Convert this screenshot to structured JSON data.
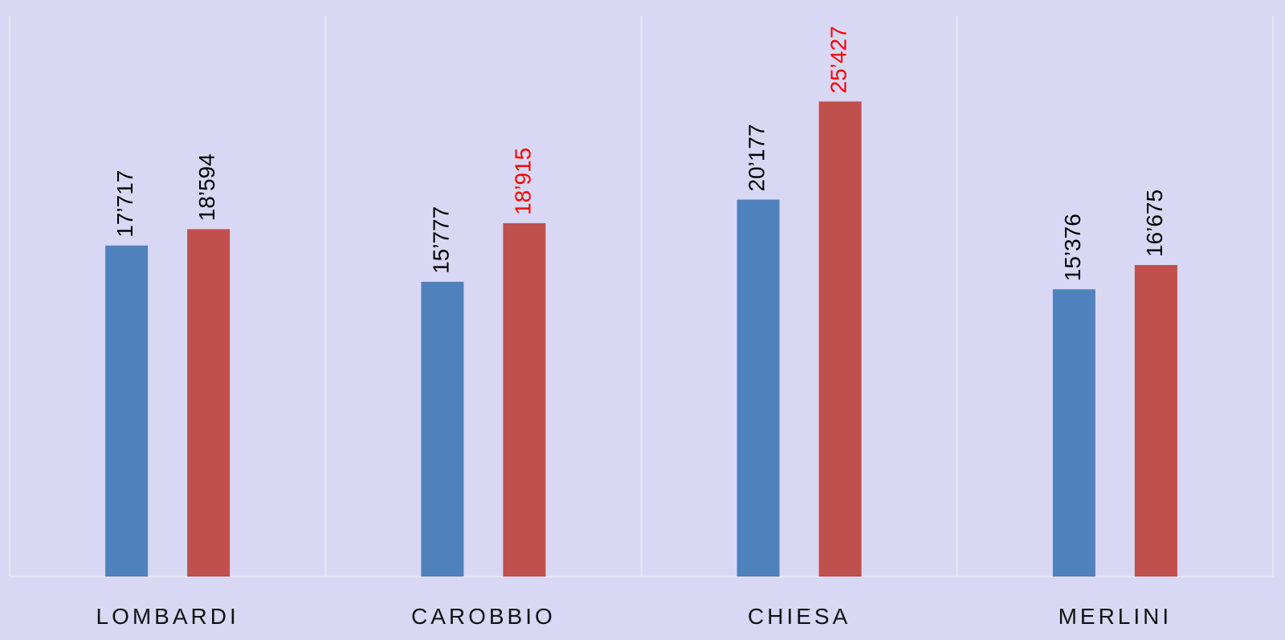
{
  "chart_data": {
    "type": "bar",
    "categories": [
      "LOMBARDI",
      "CAROBBIO",
      "CHIESA",
      "MERLINI"
    ],
    "series": [
      {
        "color": "#4f81bd",
        "values": [
          17717,
          15777,
          20177,
          15376
        ],
        "value_labels": [
          "17’717",
          "15’777",
          "20’177",
          "15’376"
        ]
      },
      {
        "color": "#c0504d",
        "values": [
          18594,
          18915,
          25427,
          16675
        ],
        "value_labels": [
          "18’594",
          "18’915",
          "25’427",
          "16’675"
        ],
        "value_label_colors": [
          "#000000",
          "#ff0000",
          "#ff0000",
          "#000000"
        ]
      }
    ],
    "ylim": [
      0,
      30000
    ]
  }
}
